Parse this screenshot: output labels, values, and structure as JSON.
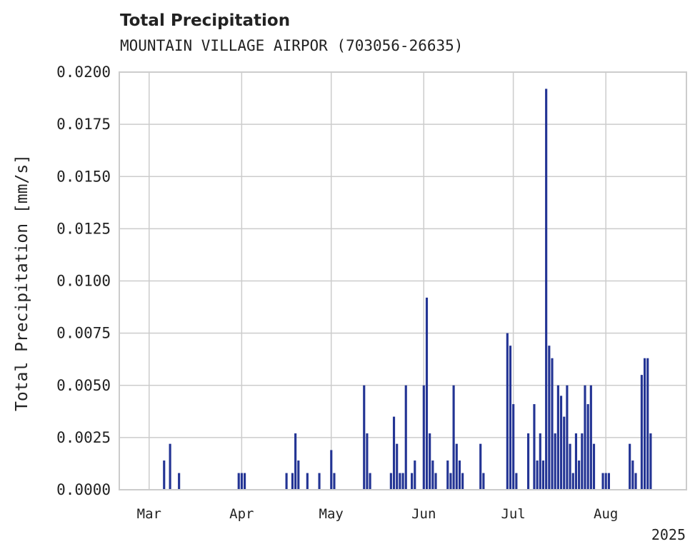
{
  "chart_data": {
    "type": "bar",
    "title": "Total Precipitation",
    "subtitle": "MOUNTAIN VILLAGE AIRPOR (703056-26635)",
    "xlabel": "",
    "ylabel": "Total Precipitation [mm/s]",
    "x_axis": {
      "type": "date",
      "range": [
        "2025-02-19",
        "2025-08-28"
      ],
      "tick_labels": [
        {
          "date": "2025-03-01",
          "label": "Mar"
        },
        {
          "date": "2025-04-01",
          "label": "Apr"
        },
        {
          "date": "2025-05-01",
          "label": "May"
        },
        {
          "date": "2025-06-01",
          "label": "Jun"
        },
        {
          "date": "2025-07-01",
          "label": "Jul"
        },
        {
          "date": "2025-08-01",
          "label": "Aug"
        }
      ],
      "offset_label": "2025"
    },
    "ylim": [
      0,
      0.02
    ],
    "yticks": [
      "0.0000",
      "0.0025",
      "0.0050",
      "0.0075",
      "0.0100",
      "0.0125",
      "0.0150",
      "0.0175",
      "0.0200"
    ],
    "grid": true,
    "bar_color": "#233494",
    "series": [
      {
        "x": [
          "2025-03-06",
          "2025-03-08",
          "2025-03-11",
          "2025-03-31",
          "2025-04-01",
          "2025-04-02",
          "2025-04-16",
          "2025-04-18",
          "2025-04-19",
          "2025-04-20",
          "2025-04-23",
          "2025-04-27",
          "2025-05-01",
          "2025-05-02",
          "2025-05-12",
          "2025-05-13",
          "2025-05-14",
          "2025-05-21",
          "2025-05-22",
          "2025-05-23",
          "2025-05-24",
          "2025-05-25",
          "2025-05-26",
          "2025-05-28",
          "2025-05-29",
          "2025-06-01",
          "2025-06-02",
          "2025-06-03",
          "2025-06-04",
          "2025-06-05",
          "2025-06-09",
          "2025-06-10",
          "2025-06-11",
          "2025-06-12",
          "2025-06-13",
          "2025-06-14",
          "2025-06-20",
          "2025-06-21",
          "2025-06-29",
          "2025-06-30",
          "2025-07-01",
          "2025-07-02",
          "2025-07-06",
          "2025-07-08",
          "2025-07-09",
          "2025-07-10",
          "2025-07-11",
          "2025-07-12",
          "2025-07-13",
          "2025-07-14",
          "2025-07-15",
          "2025-07-16",
          "2025-07-17",
          "2025-07-18",
          "2025-07-19",
          "2025-07-20",
          "2025-07-21",
          "2025-07-22",
          "2025-07-23",
          "2025-07-24",
          "2025-07-25",
          "2025-07-26",
          "2025-07-27",
          "2025-07-28",
          "2025-07-31",
          "2025-08-01",
          "2025-08-02",
          "2025-08-09",
          "2025-08-10",
          "2025-08-11",
          "2025-08-13",
          "2025-08-14",
          "2025-08-15",
          "2025-08-16"
        ],
        "values": [
          0.0014,
          0.0022,
          0.0008,
          0.0008,
          0.0008,
          0.0008,
          0.0008,
          0.0008,
          0.0027,
          0.0014,
          0.0008,
          0.0008,
          0.0019,
          0.0008,
          0.005,
          0.0027,
          0.0008,
          0.0008,
          0.0035,
          0.0022,
          0.0008,
          0.0008,
          0.005,
          0.0008,
          0.0014,
          0.005,
          0.0092,
          0.0027,
          0.0014,
          0.0008,
          0.0014,
          0.0008,
          0.005,
          0.0022,
          0.0014,
          0.0008,
          0.0022,
          0.0008,
          0.0075,
          0.0069,
          0.0041,
          0.0008,
          0.0027,
          0.0041,
          0.0014,
          0.0027,
          0.0014,
          0.0192,
          0.0069,
          0.0063,
          0.0027,
          0.005,
          0.0045,
          0.0035,
          0.005,
          0.0022,
          0.0008,
          0.0027,
          0.0014,
          0.0027,
          0.005,
          0.0041,
          0.005,
          0.0022,
          0.0008,
          0.0008,
          0.0008,
          0.0022,
          0.0014,
          0.0008,
          0.0055,
          0.0063,
          0.0063,
          0.0027
        ]
      }
    ]
  }
}
